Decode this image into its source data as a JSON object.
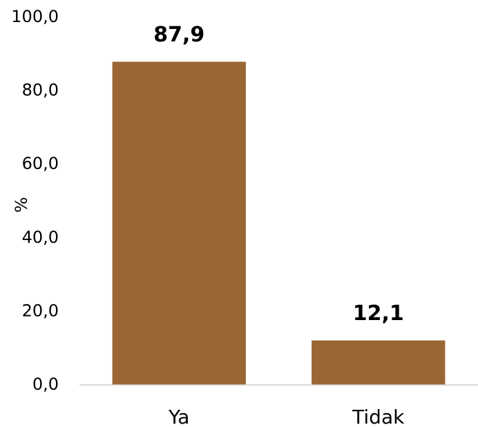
{
  "chart_data": {
    "type": "bar",
    "y_label": "%",
    "categories": [
      "Ya",
      "Tidak"
    ],
    "values": [
      87.9,
      12.1
    ],
    "value_labels": [
      "87,9",
      "12,1"
    ],
    "color": "#9a6634",
    "ylim": [
      0,
      100
    ],
    "yticks": [
      {
        "value": 0,
        "label": "0,0"
      },
      {
        "value": 20,
        "label": "20,0"
      },
      {
        "value": 40,
        "label": "40,0"
      },
      {
        "value": 60,
        "label": "60,0"
      },
      {
        "value": 80,
        "label": "80,0"
      },
      {
        "value": 100,
        "label": "100,0"
      }
    ],
    "grid": false
  }
}
